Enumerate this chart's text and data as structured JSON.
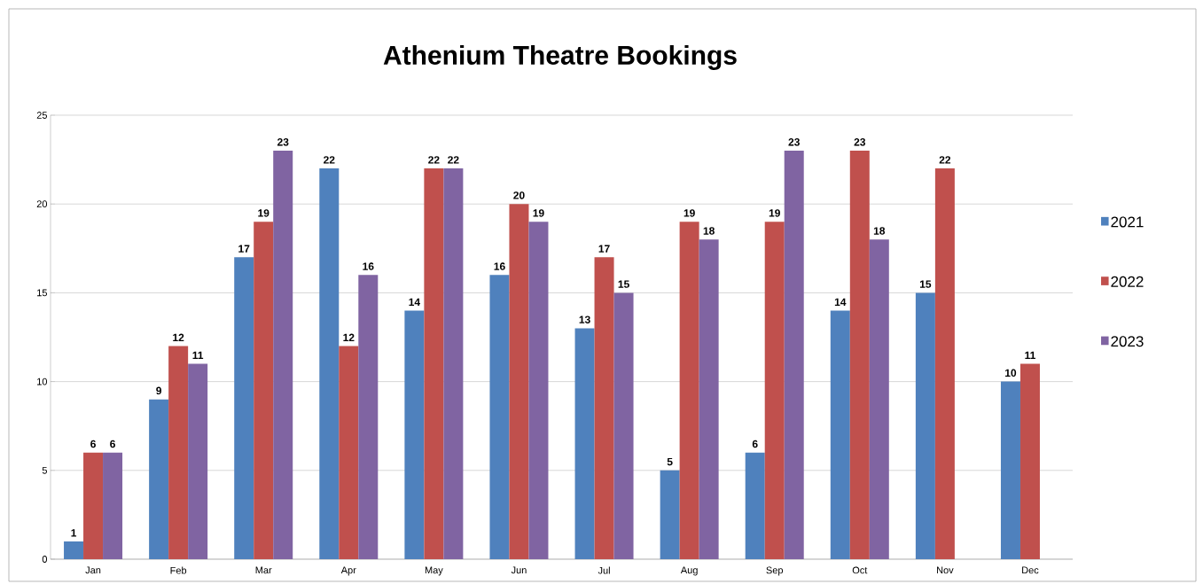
{
  "chart_data": {
    "type": "bar",
    "title": "Athenium Theatre Bookings",
    "categories": [
      "Jan",
      "Feb",
      "Mar",
      "Apr",
      "May",
      "Jun",
      "Jul",
      "Aug",
      "Sep",
      "Oct",
      "Nov",
      "Dec"
    ],
    "series": [
      {
        "name": "2021",
        "color": "#4f81bd",
        "values": [
          1,
          9,
          17,
          22,
          14,
          16,
          13,
          5,
          6,
          14,
          15,
          10
        ]
      },
      {
        "name": "2022",
        "color": "#c0504d",
        "values": [
          6,
          12,
          19,
          12,
          22,
          20,
          17,
          19,
          19,
          23,
          22,
          11
        ]
      },
      {
        "name": "2023",
        "color": "#8064a2",
        "values": [
          6,
          11,
          23,
          16,
          22,
          19,
          15,
          18,
          23,
          18,
          null,
          null
        ]
      }
    ],
    "ylim": [
      0,
      25
    ],
    "yticks": [
      0,
      5,
      10,
      15,
      20,
      25
    ],
    "grid": "y",
    "legend": "right",
    "data_labels": true
  }
}
